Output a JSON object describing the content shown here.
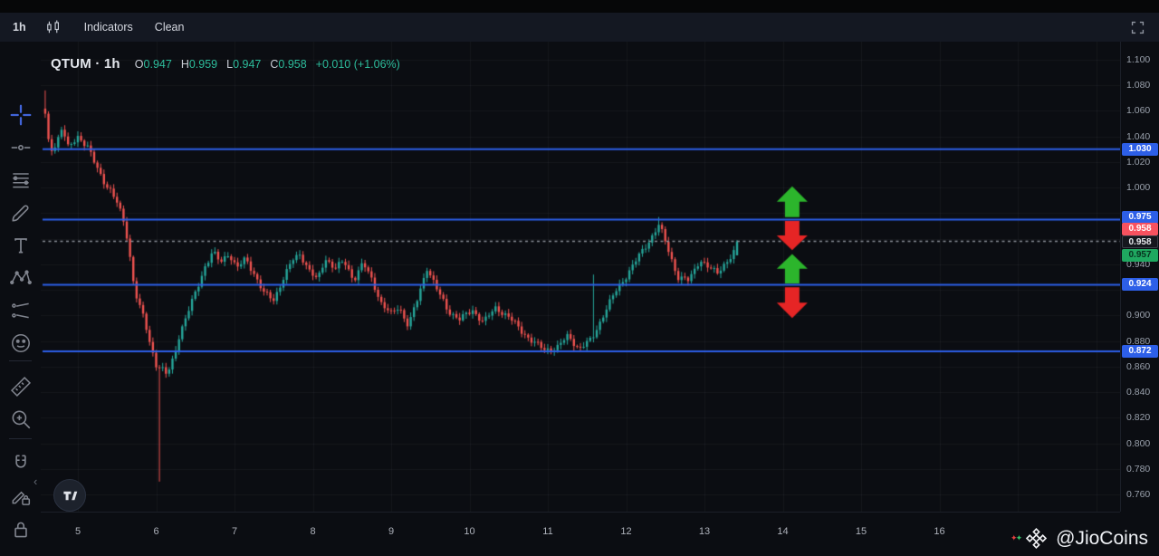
{
  "header": {
    "timeframe": "1h",
    "indicators_label": "Indicators",
    "clean_label": "Clean"
  },
  "symbol": {
    "title": "QTUM · 1h",
    "o_label": "O",
    "open": "0.947",
    "h_label": "H",
    "high": "0.959",
    "l_label": "L",
    "low": "0.947",
    "c_label": "C",
    "close": "0.958",
    "change": "+0.010 (+1.06%)"
  },
  "left_toolbar": {
    "tools": [
      {
        "name": "crosshair-tool",
        "active": true
      },
      {
        "name": "horizontal-line-tool"
      },
      {
        "name": "fib-retracement-tool"
      },
      {
        "name": "brush-tool"
      },
      {
        "name": "text-tool"
      },
      {
        "name": "xabcd-pattern-tool"
      },
      {
        "name": "forecast-tool"
      },
      {
        "name": "emoji-tool"
      },
      {
        "name": "measure-tool"
      },
      {
        "name": "zoom-in-tool"
      },
      {
        "name": "magnet-tool"
      },
      {
        "name": "draw-lock-tool"
      },
      {
        "name": "lock-all-tool"
      },
      {
        "name": "hide-drawings-tool"
      }
    ]
  },
  "price_scale": {
    "ticks": [
      "1.100",
      "1.080",
      "1.060",
      "1.040",
      "1.020",
      "1.000",
      "0.940",
      "0.900",
      "0.880",
      "0.860",
      "0.840",
      "0.820",
      "0.800",
      "0.780",
      "0.760"
    ],
    "badges": [
      {
        "text": "1.030",
        "bg": "#2d5fe8",
        "color": "#ffffff",
        "price_pos": 1.03
      },
      {
        "text": "0.975",
        "bg": "#2d5fe8",
        "color": "#ffffff",
        "price_pos": 0.9771
      },
      {
        "text": "0.958",
        "bg": "#f7525f",
        "color": "#ffffff",
        "price_pos": 0.9672
      },
      {
        "text": "0.958",
        "bg": "#15171d",
        "color": "#e8eaee",
        "border": "1px solid #3a3f49",
        "price_pos": 0.9573
      },
      {
        "text": "0.957",
        "bg": "#1fa860",
        "color": "#07331f",
        "price_pos": 0.9473
      },
      {
        "text": "0.924",
        "bg": "#2d5fe8",
        "color": "#ffffff",
        "price_pos": 0.924
      },
      {
        "text": "0.872",
        "bg": "#2d5fe8",
        "color": "#ffffff",
        "price_pos": 0.872
      }
    ]
  },
  "time_scale": {
    "labels": [
      5,
      6,
      7,
      8,
      9,
      10,
      11,
      12,
      13,
      14,
      15,
      16
    ]
  },
  "watermark": {
    "handle": "@JioCoins"
  },
  "chart_data": {
    "type": "candlestick",
    "symbol": "QTUM",
    "interval": "1h",
    "ohlc": {
      "open": 0.947,
      "high": 0.959,
      "low": 0.947,
      "close": 0.958,
      "change": 0.01,
      "change_pct": 1.06
    },
    "y_axis": {
      "min": 0.76,
      "max": 1.1,
      "tick_step": 0.02
    },
    "x_axis": {
      "unit": "day-of-month",
      "labels": [
        5,
        6,
        7,
        8,
        9,
        10,
        11,
        12,
        13,
        14,
        15,
        16
      ]
    },
    "colors": {
      "candle_up": "#26a69a",
      "candle_down": "#ef5350",
      "level_blue": "#2d5fe8",
      "dashed_gray": "#8b9099",
      "arrow_green": "#2cb52c",
      "arrow_red": "#e62525",
      "grid": "rgba(255,255,255,0.045)"
    },
    "levels": [
      {
        "price": 1.03,
        "style": "solid",
        "label": "1.030"
      },
      {
        "price": 0.975,
        "style": "solid",
        "label": "0.975"
      },
      {
        "price": 0.924,
        "style": "solid",
        "label": "0.924"
      },
      {
        "price": 0.872,
        "style": "solid",
        "label": "0.872"
      },
      {
        "price": 0.958,
        "style": "dashed",
        "label": "0.958"
      }
    ],
    "candles_start_day": 4.583,
    "candles_end_day": 13.44,
    "price_path": [
      [
        4.58,
        1.058
      ],
      [
        4.64,
        1.028
      ],
      [
        4.72,
        1.034
      ],
      [
        4.8,
        1.048
      ],
      [
        4.88,
        1.03
      ],
      [
        5.0,
        1.04
      ],
      [
        5.12,
        1.033
      ],
      [
        5.22,
        1.018
      ],
      [
        5.32,
        1.006
      ],
      [
        5.42,
        0.998
      ],
      [
        5.5,
        0.988
      ],
      [
        5.58,
        0.974
      ],
      [
        5.64,
        0.958
      ],
      [
        5.7,
        0.93
      ],
      [
        5.76,
        0.912
      ],
      [
        5.84,
        0.898
      ],
      [
        5.92,
        0.878
      ],
      [
        6.0,
        0.862
      ],
      [
        6.08,
        0.858
      ],
      [
        6.14,
        0.853
      ],
      [
        6.22,
        0.866
      ],
      [
        6.3,
        0.886
      ],
      [
        6.4,
        0.902
      ],
      [
        6.52,
        0.92
      ],
      [
        6.62,
        0.938
      ],
      [
        6.72,
        0.95
      ],
      [
        6.82,
        0.941
      ],
      [
        6.93,
        0.949
      ],
      [
        7.03,
        0.937
      ],
      [
        7.14,
        0.944
      ],
      [
        7.26,
        0.932
      ],
      [
        7.38,
        0.917
      ],
      [
        7.5,
        0.912
      ],
      [
        7.62,
        0.929
      ],
      [
        7.74,
        0.943
      ],
      [
        7.84,
        0.948
      ],
      [
        7.96,
        0.935
      ],
      [
        8.06,
        0.927
      ],
      [
        8.16,
        0.945
      ],
      [
        8.28,
        0.937
      ],
      [
        8.4,
        0.942
      ],
      [
        8.52,
        0.928
      ],
      [
        8.64,
        0.941
      ],
      [
        8.76,
        0.927
      ],
      [
        8.88,
        0.909
      ],
      [
        9.0,
        0.901
      ],
      [
        9.1,
        0.907
      ],
      [
        9.22,
        0.892
      ],
      [
        9.34,
        0.913
      ],
      [
        9.46,
        0.938
      ],
      [
        9.58,
        0.921
      ],
      [
        9.72,
        0.904
      ],
      [
        9.88,
        0.897
      ],
      [
        10.04,
        0.904
      ],
      [
        10.18,
        0.895
      ],
      [
        10.34,
        0.906
      ],
      [
        10.5,
        0.899
      ],
      [
        10.66,
        0.888
      ],
      [
        10.82,
        0.879
      ],
      [
        10.96,
        0.873
      ],
      [
        11.12,
        0.875
      ],
      [
        11.26,
        0.884
      ],
      [
        11.4,
        0.874
      ],
      [
        11.56,
        0.881
      ],
      [
        11.72,
        0.902
      ],
      [
        11.86,
        0.918
      ],
      [
        12.0,
        0.931
      ],
      [
        12.16,
        0.946
      ],
      [
        12.3,
        0.959
      ],
      [
        12.42,
        0.971
      ],
      [
        12.54,
        0.951
      ],
      [
        12.66,
        0.93
      ],
      [
        12.8,
        0.927
      ],
      [
        12.94,
        0.944
      ],
      [
        13.06,
        0.937
      ],
      [
        13.16,
        0.933
      ],
      [
        13.26,
        0.941
      ],
      [
        13.36,
        0.947
      ],
      [
        13.44,
        0.957
      ]
    ],
    "spikes": [
      {
        "day": 4.6,
        "high": 1.076
      },
      {
        "day": 6.04,
        "low": 0.77
      },
      {
        "day": 11.6,
        "high": 0.932
      },
      {
        "day": 12.43,
        "high": 0.977
      }
    ],
    "arrows": [
      {
        "direction": "up",
        "day": 14.12,
        "price_top": 1.001,
        "price_bottom": 0.977
      },
      {
        "direction": "down",
        "day": 14.12,
        "price_top": 0.974,
        "price_bottom": 0.951
      },
      {
        "direction": "up",
        "day": 14.12,
        "price_top": 0.948,
        "price_bottom": 0.925
      },
      {
        "direction": "down",
        "day": 14.12,
        "price_top": 0.922,
        "price_bottom": 0.898
      }
    ]
  }
}
